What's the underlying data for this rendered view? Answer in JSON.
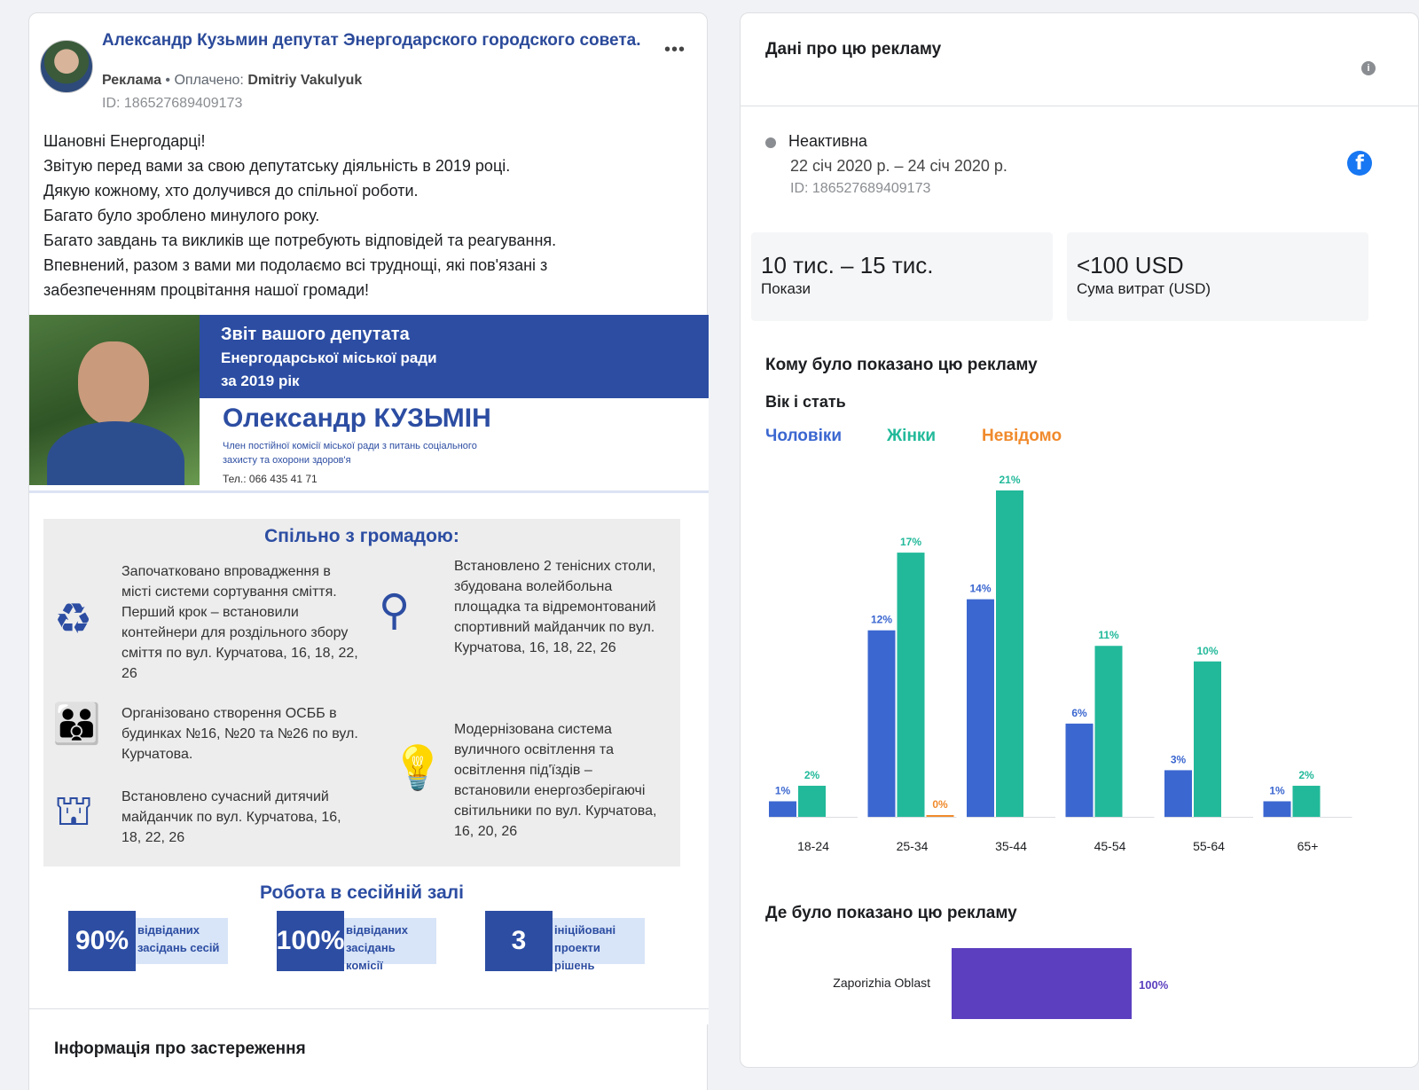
{
  "post": {
    "page_name": "Александр Кузьмин депутат Энергодарского городского совета.",
    "sponsored_label": "Реклама",
    "paid_by_label": "Оплачено:",
    "paid_by": "Dmitriy Vakulyuk",
    "ad_id": "ID: 186527689409173",
    "more_icon": "more-dots-icon",
    "text_lines": [
      "Шановні Енергодарці!",
      "Звітую перед вами за свою депутатську діяльність в 2019 році.",
      "Дякую кожному, хто долучився до спільної роботи.",
      "Багато було зроблено минулого року.",
      "Багато завдань та викликів ще потребують відповідей та реагування.",
      "Впевнений, разом з вами ми подолаємо всі труднощі, які пов'язані з",
      "забезпеченням процвітання нашої громади!"
    ]
  },
  "creative": {
    "banner_line1": "Звіт вашого депутата",
    "banner_line2": "Енергодарської міської ради",
    "banner_line3": "за 2019 рік",
    "candidate_name": "Олександр КУЗЬМІН",
    "candidate_role": "Член постійної комісії міської ради з питань соціального захисту та охорони здоров'я",
    "phone": "Тел.: 066 435 41 71",
    "community_title": "Спільно з громадою:",
    "items": [
      "Започатковано впровадження в місті системи сортування сміття. Перший крок – встановили контейнери для роздільного збору сміття по вул. Курчатова, 16, 18, 22, 26",
      "Встановлено 2 тенісних столи, збудована волейбольна площадка та відремонтований спортивний майданчик по вул. Курчатова, 16, 18, 22, 26",
      "Організовано створення ОСББ в будинках №16, №20 та №26 по вул. Курчатова.",
      "Модернізована система вуличного освітлення та освітлення під'їздів – встановили енергозберігаючі світильники по вул. Курчатова, 16, 20, 26",
      "Встановлено сучасний дитячий майданчик по вул. Курчатова, 16, 18, 22, 26"
    ],
    "session_title": "Робота в сесійній залі",
    "stats": [
      {
        "num": "90%",
        "label": "відвіданих засідань сесій"
      },
      {
        "num": "100%",
        "label": "відвіданих засідань комісії"
      },
      {
        "num": "3",
        "label": "ініційовані проекти рішень"
      }
    ]
  },
  "disclaimer_title": "Інформація про застереження",
  "details": {
    "title": "Дані про цю рекламу",
    "info_icon": "info-icon",
    "status": "Неактивна",
    "dates": "22 січ 2020 р. – 24 січ 2020 р.",
    "ad_id": "ID: 186527689409173",
    "platform_icon": "facebook-icon",
    "impressions_value": "10 тис. – 15 тис.",
    "impressions_label": "Покази",
    "spend_value": "<100 USD",
    "spend_label": "Сума витрат (USD)",
    "audience_title": "Кому було показано цю рекламу",
    "age_gender_title": "Вік і стать",
    "location_title": "Де було показано цю рекламу"
  },
  "colors": {
    "men": "#3b67d0",
    "women": "#22b99a",
    "unknown": "#f08a2c",
    "region": "#5b3fbf",
    "brand_blue": "#2c4da2"
  },
  "chart_data": [
    {
      "type": "bar",
      "title": "Вік і стать",
      "categories": [
        "18-24",
        "25-34",
        "35-44",
        "45-54",
        "55-64",
        "65+"
      ],
      "series": [
        {
          "name": "Чоловіки",
          "values": [
            1,
            12,
            14,
            6,
            3,
            1
          ]
        },
        {
          "name": "Жінки",
          "values": [
            2,
            17,
            21,
            11,
            10,
            2
          ]
        },
        {
          "name": "Невідомо",
          "values": [
            null,
            0,
            null,
            null,
            null,
            null
          ]
        }
      ],
      "unit": "%",
      "ylim": [
        0,
        21
      ],
      "legend": "top-left",
      "grid": false
    },
    {
      "type": "bar",
      "title": "Де було показано цю рекламу",
      "orientation": "horizontal",
      "categories": [
        "Zaporizhia Oblast"
      ],
      "values": [
        100
      ],
      "unit": "%",
      "xlim": [
        0,
        100
      ]
    }
  ]
}
